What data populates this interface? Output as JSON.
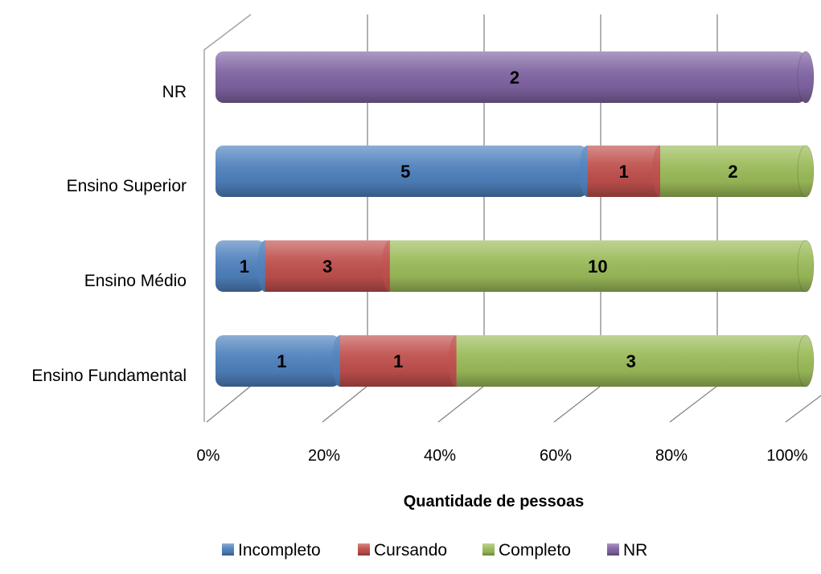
{
  "chart_data": {
    "type": "bar",
    "orientation": "horizontal",
    "stacked": "percent",
    "categories": [
      "Ensino Fundamental",
      "Ensino Médio",
      "Ensino Superior",
      "NR"
    ],
    "series": [
      {
        "name": "Incompleto",
        "values": [
          1,
          1,
          5,
          0
        ],
        "color": "#4F81BD"
      },
      {
        "name": "Cursando",
        "values": [
          1,
          3,
          1,
          0
        ],
        "color": "#C0504D"
      },
      {
        "name": "Completo",
        "values": [
          3,
          10,
          2,
          0
        ],
        "color": "#9BBB59"
      },
      {
        "name": "NR",
        "values": [
          0,
          0,
          0,
          2
        ],
        "color": "#8064A2"
      }
    ],
    "xlabel": "Quantidade de pessoas",
    "ylabel": "",
    "xlim": [
      0,
      100
    ],
    "xticks": [
      "0%",
      "20%",
      "40%",
      "60%",
      "80%",
      "100%"
    ],
    "grid": true,
    "legend_position": "bottom",
    "style": "3d-cylinder"
  }
}
